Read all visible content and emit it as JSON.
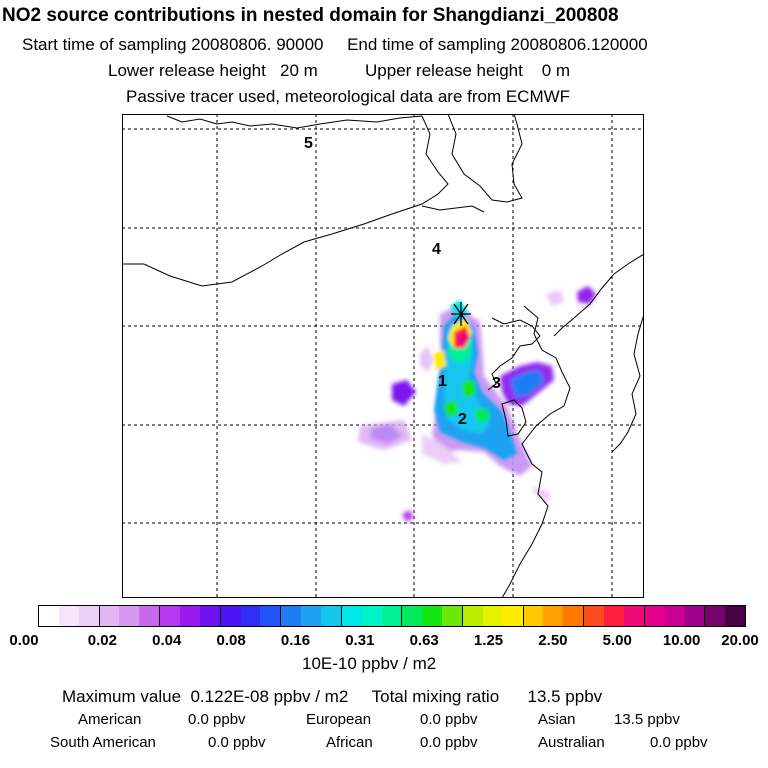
{
  "header": {
    "title": "NO2 source contributions in nested domain for Shangdianzi_200808",
    "line1": "Start time of sampling 20080806. 90000     End time of sampling 20080806.120000",
    "line2": "Lower release height   20 m          Upper release height    0 m",
    "line3": "Passive tracer used, meteorological data are from ECMWF"
  },
  "map": {
    "region_labels": [
      "5",
      "4",
      "1",
      "3",
      "2"
    ],
    "marker": "receptor-star"
  },
  "colorbar": {
    "colors": [
      "#ffffff",
      "#f5e6fb",
      "#ecd0f7",
      "#e3b6f3",
      "#d898ef",
      "#c968ef",
      "#b338ef",
      "#9818ee",
      "#6f10f0",
      "#4a14f4",
      "#2f2ef6",
      "#1f55f6",
      "#1d7df4",
      "#1ca2f1",
      "#14c6ee",
      "#00e8e8",
      "#00f2c8",
      "#00f096",
      "#00ea5a",
      "#14e614",
      "#6ee60a",
      "#b8ec00",
      "#e8f000",
      "#ffea00",
      "#ffc800",
      "#ffa000",
      "#ff7800",
      "#ff4a1e",
      "#ff1e3c",
      "#f00a78",
      "#e4008c",
      "#c80096",
      "#a0008c",
      "#78006e",
      "#480046"
    ],
    "tick_labels": [
      "0.00",
      "0.02",
      "0.04",
      "0.08",
      "0.16",
      "0.31",
      "0.63",
      "1.25",
      "2.50",
      "5.00",
      "10.00",
      "20.00"
    ],
    "unit": "10E-10 ppbv / m2"
  },
  "summary": {
    "max_line": "Maximum value  0.122E-08 ppbv / m2     Total mixing ratio      13.5 ppbv",
    "contributions": [
      {
        "label": "American",
        "value": "0.0 ppbv"
      },
      {
        "label": "European",
        "value": "0.0 ppbv"
      },
      {
        "label": "Asian",
        "value": "13.5 ppbv"
      },
      {
        "label": "South American",
        "value": "0.0 ppbv"
      },
      {
        "label": "African",
        "value": "0.0 ppbv"
      },
      {
        "label": "Australian",
        "value": "0.0 ppbv"
      }
    ]
  }
}
